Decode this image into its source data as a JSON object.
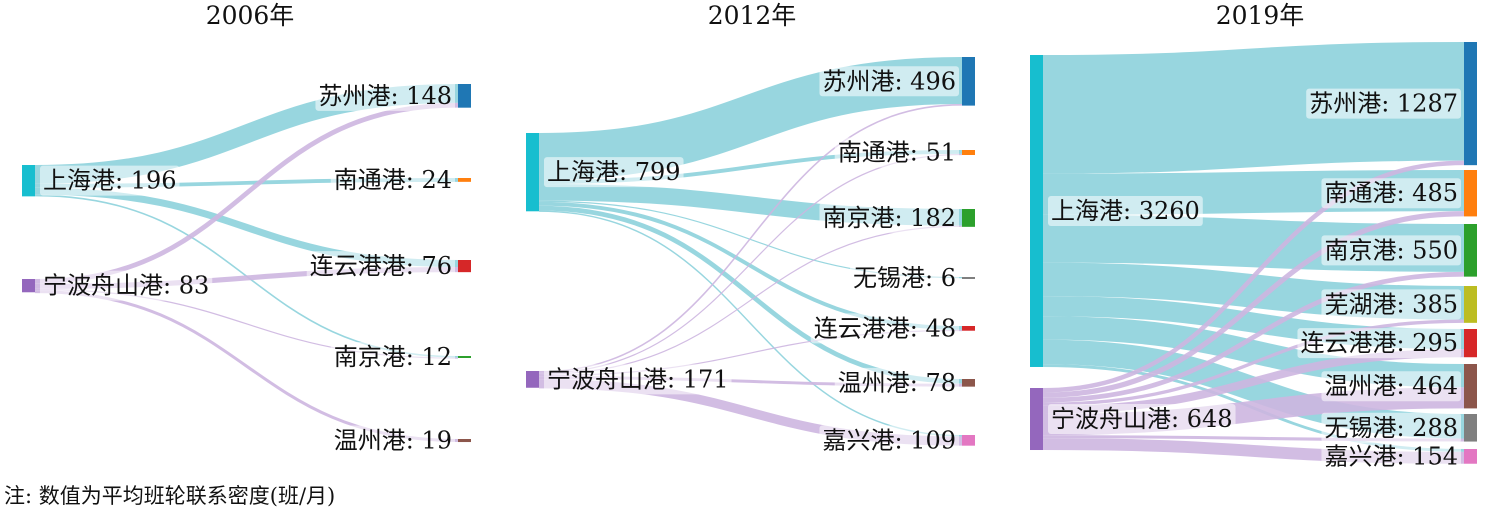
{
  "note": "注: 数值为平均班轮联系密度(班/月)",
  "colors": {
    "shanghai": "#17becf",
    "ningbo": "#9467bd",
    "shanghai_link": "#86cfd9",
    "ningbo_link": "#cdb6e0",
    "label_bg": "#ffffff"
  },
  "chart_data": [
    {
      "type": "sankey",
      "title": "2006年",
      "sources": [
        {
          "name": "上海港",
          "value": 196,
          "label": "上海港: 196",
          "color": "#17becf"
        },
        {
          "name": "宁波舟山港",
          "value": 83,
          "label": "宁波舟山港: 83",
          "color": "#9467bd"
        }
      ],
      "targets": [
        {
          "name": "苏州港",
          "value": 148,
          "label": "苏州港: 148",
          "color": "#1f77b4"
        },
        {
          "name": "南通港",
          "value": 24,
          "label": "南通港: 24",
          "color": "#ff7f0e"
        },
        {
          "name": "连云港港",
          "value": 76,
          "label": "连云港港: 76",
          "color": "#d62728"
        },
        {
          "name": "南京港",
          "value": 12,
          "label": "南京港: 12",
          "color": "#2ca02c"
        },
        {
          "name": "温州港",
          "value": 19,
          "label": "温州港: 19",
          "color": "#8c564b"
        }
      ],
      "links": [
        {
          "source": "上海港",
          "target": "苏州港",
          "value": 118
        },
        {
          "source": "上海港",
          "target": "南通港",
          "value": 24
        },
        {
          "source": "上海港",
          "target": "连云港港",
          "value": 44
        },
        {
          "source": "上海港",
          "target": "南京港",
          "value": 10
        },
        {
          "source": "宁波舟山港",
          "target": "苏州港",
          "value": 30
        },
        {
          "source": "宁波舟山港",
          "target": "连云港港",
          "value": 32
        },
        {
          "source": "宁波舟山港",
          "target": "南京港",
          "value": 2
        },
        {
          "source": "宁波舟山港",
          "target": "温州港",
          "value": 19
        }
      ]
    },
    {
      "type": "sankey",
      "title": "2012年",
      "sources": [
        {
          "name": "上海港",
          "value": 799,
          "label": "上海港: 799",
          "color": "#17becf"
        },
        {
          "name": "宁波舟山港",
          "value": 171,
          "label": "宁波舟山港: 171",
          "color": "#9467bd"
        }
      ],
      "targets": [
        {
          "name": "苏州港",
          "value": 496,
          "label": "苏州港: 496",
          "color": "#1f77b4"
        },
        {
          "name": "南通港",
          "value": 51,
          "label": "南通港: 51",
          "color": "#ff7f0e"
        },
        {
          "name": "南京港",
          "value": 182,
          "label": "南京港: 182",
          "color": "#2ca02c"
        },
        {
          "name": "无锡港",
          "value": 6,
          "label": "无锡港: 6",
          "color": "#7f7f7f"
        },
        {
          "name": "连云港港",
          "value": 48,
          "label": "连云港港: 48",
          "color": "#d62728"
        },
        {
          "name": "温州港",
          "value": 78,
          "label": "温州港: 78",
          "color": "#8c564b"
        },
        {
          "name": "嘉兴港",
          "value": 109,
          "label": "嘉兴港: 109",
          "color": "#e377c2"
        }
      ],
      "links": [
        {
          "source": "上海港",
          "target": "苏州港",
          "value": 480
        },
        {
          "source": "上海港",
          "target": "南通港",
          "value": 40
        },
        {
          "source": "上海港",
          "target": "南京港",
          "value": 170
        },
        {
          "source": "上海港",
          "target": "无锡港",
          "value": 6
        },
        {
          "source": "上海港",
          "target": "连云港港",
          "value": 40
        },
        {
          "source": "上海港",
          "target": "温州港",
          "value": 48
        },
        {
          "source": "上海港",
          "target": "嘉兴港",
          "value": 15
        },
        {
          "source": "宁波舟山港",
          "target": "苏州港",
          "value": 16
        },
        {
          "source": "宁波舟山港",
          "target": "南通港",
          "value": 11
        },
        {
          "source": "宁波舟山港",
          "target": "南京港",
          "value": 12
        },
        {
          "source": "宁波舟山港",
          "target": "连云港港",
          "value": 8
        },
        {
          "source": "宁波舟山港",
          "target": "温州港",
          "value": 30
        },
        {
          "source": "宁波舟山港",
          "target": "嘉兴港",
          "value": 94
        }
      ]
    },
    {
      "type": "sankey",
      "title": "2019年",
      "sources": [
        {
          "name": "上海港",
          "value": 3260,
          "label": "上海港: 3260",
          "color": "#17becf"
        },
        {
          "name": "宁波舟山港",
          "value": 648,
          "label": "宁波舟山港: 648",
          "color": "#9467bd"
        }
      ],
      "targets": [
        {
          "name": "苏州港",
          "value": 1287,
          "label": "苏州港: 1287",
          "color": "#1f77b4"
        },
        {
          "name": "南通港",
          "value": 485,
          "label": "南通港: 485",
          "color": "#ff7f0e"
        },
        {
          "name": "南京港",
          "value": 550,
          "label": "南京港: 550",
          "color": "#2ca02c"
        },
        {
          "name": "芜湖港",
          "value": 385,
          "label": "芜湖港: 385",
          "color": "#bcbd22"
        },
        {
          "name": "连云港港",
          "value": 295,
          "label": "连云港港: 295",
          "color": "#d62728"
        },
        {
          "name": "温州港",
          "value": 464,
          "label": "温州港: 464",
          "color": "#8c564b"
        },
        {
          "name": "无锡港",
          "value": 288,
          "label": "无锡港: 288",
          "color": "#7f7f7f"
        },
        {
          "name": "嘉兴港",
          "value": 154,
          "label": "嘉兴港: 154",
          "color": "#e377c2"
        }
      ],
      "links": [
        {
          "source": "上海港",
          "target": "苏州港",
          "value": 1240
        },
        {
          "source": "上海港",
          "target": "南通港",
          "value": 430
        },
        {
          "source": "上海港",
          "target": "南京港",
          "value": 500
        },
        {
          "source": "上海港",
          "target": "芜湖港",
          "value": 350
        },
        {
          "source": "上海港",
          "target": "连云港港",
          "value": 210
        },
        {
          "source": "上海港",
          "target": "温州港",
          "value": 244
        },
        {
          "source": "上海港",
          "target": "无锡港",
          "value": 256
        },
        {
          "source": "上海港",
          "target": "嘉兴港",
          "value": 30
        },
        {
          "source": "宁波舟山港",
          "target": "苏州港",
          "value": 47
        },
        {
          "source": "宁波舟山港",
          "target": "南通港",
          "value": 55
        },
        {
          "source": "宁波舟山港",
          "target": "南京港",
          "value": 50
        },
        {
          "source": "宁波舟山港",
          "target": "芜湖港",
          "value": 35
        },
        {
          "source": "宁波舟山港",
          "target": "连云港港",
          "value": 85
        },
        {
          "source": "宁波舟山港",
          "target": "温州港",
          "value": 220
        },
        {
          "source": "宁波舟山港",
          "target": "无锡港",
          "value": 32
        },
        {
          "source": "宁波舟山港",
          "target": "嘉兴港",
          "value": 124
        }
      ]
    }
  ]
}
